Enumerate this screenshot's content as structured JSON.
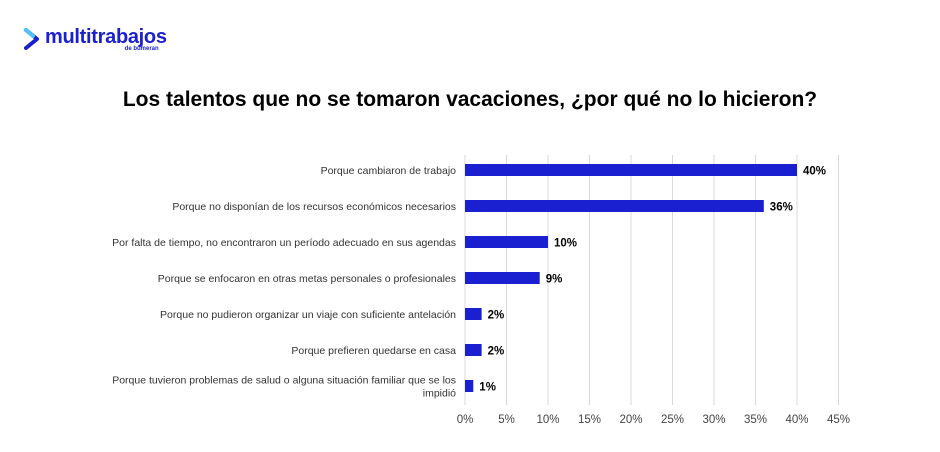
{
  "brand": {
    "name": "multitrabajos",
    "sub": "de bumeran",
    "color": "#1a1fd0"
  },
  "chart_data": {
    "type": "bar",
    "orientation": "horizontal",
    "title": "Los talentos que no se tomaron vacaciones, ¿por qué no lo hicieron?",
    "categories": [
      [
        "Porque cambiaron de trabajo"
      ],
      [
        "Porque no disponían de los recursos económicos necesarios"
      ],
      [
        "Por falta de tiempo, no encontraron un período adecuado en sus agendas"
      ],
      [
        "Porque se enfocaron en otras metas personales o profesionales"
      ],
      [
        "Porque no pudieron organizar un viaje con suficiente antelación"
      ],
      [
        "Porque prefieren quedarse en casa"
      ],
      [
        "Porque tuvieron problemas de salud o alguna situación familiar que se los",
        "impidió"
      ]
    ],
    "values": [
      40,
      36,
      10,
      9,
      2,
      2,
      1
    ],
    "value_labels": [
      "40%",
      "36%",
      "10%",
      "9%",
      "2%",
      "2%",
      "1%"
    ],
    "xlim": [
      0,
      45
    ],
    "ticks": [
      0,
      5,
      10,
      15,
      20,
      25,
      30,
      35,
      40,
      45
    ],
    "tick_labels": [
      "0%",
      "5%",
      "10%",
      "15%",
      "20%",
      "25%",
      "30%",
      "35%",
      "40%",
      "45%"
    ],
    "grid": true,
    "legend": "none",
    "bar_color": "#1a1fd0",
    "grid_color": "#d9d9d9"
  }
}
